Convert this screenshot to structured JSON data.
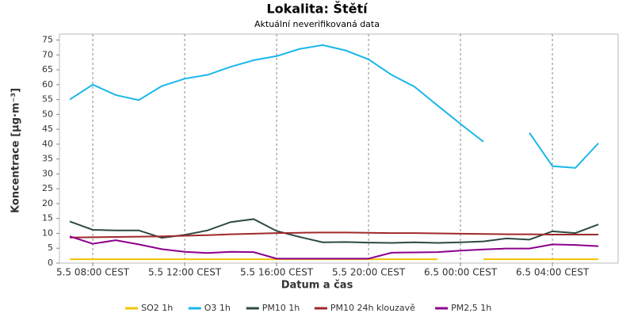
{
  "chart_data": {
    "type": "line",
    "title": "Lokalita: Štětí",
    "subtitle": "Aktuální neverifikovaná data",
    "x_label": "Datum a čas",
    "y_label": "Koncentrace [µg·m⁻³]",
    "x": [
      7,
      8,
      9,
      10,
      11,
      12,
      13,
      14,
      15,
      16,
      17,
      18,
      19,
      20,
      21,
      22,
      23,
      24,
      25,
      26,
      27,
      28,
      29,
      30
    ],
    "xlim": [
      6.55,
      30.86
    ],
    "xticks": [
      {
        "value": 8,
        "label": "5.5 08:00 CEST"
      },
      {
        "value": 12,
        "label": "5.5 12:00 CEST"
      },
      {
        "value": 16,
        "label": "5.5 16:00 CEST"
      },
      {
        "value": 20,
        "label": "5.5 20:00 CEST"
      },
      {
        "value": 24,
        "label": "6.5 00:00 CEST"
      },
      {
        "value": 28,
        "label": "6.5 04:00 CEST"
      }
    ],
    "ylim": [
      0,
      77
    ],
    "yticks": [
      0,
      5,
      10,
      15,
      20,
      25,
      30,
      35,
      40,
      45,
      50,
      55,
      60,
      65,
      70,
      75
    ],
    "grid": "x",
    "legend": "bottom",
    "series": [
      {
        "name": "SO2 1h",
        "color": "#f5c400",
        "values": [
          1.3,
          1.3,
          1.3,
          1.3,
          1.3,
          1.3,
          1.3,
          1.3,
          1.3,
          1.3,
          1.3,
          1.3,
          1.3,
          1.3,
          1.3,
          1.3,
          1.3,
          null,
          1.3,
          1.3,
          1.3,
          1.3,
          1.3,
          1.3
        ]
      },
      {
        "name": "O3 1h",
        "color": "#19b7ea",
        "values": [
          55,
          60,
          56.5,
          54.8,
          59.5,
          62,
          63.3,
          66,
          68.2,
          69.6,
          72,
          73.3,
          71.5,
          68.5,
          63.3,
          59.3,
          53,
          46.8,
          40.8,
          null,
          43.8,
          32.6,
          32,
          40.3
        ]
      },
      {
        "name": "PM10 1h",
        "color": "#2e4a44",
        "values": [
          14,
          11.2,
          11,
          11,
          8.5,
          9.5,
          11,
          13.8,
          14.8,
          10.8,
          8.8,
          7,
          7.1,
          6.9,
          6.8,
          7,
          6.8,
          7,
          7.3,
          8.3,
          7.9,
          10.7,
          10.1,
          13
        ]
      },
      {
        "name": "PM10 24h klouzavě",
        "color": "#a0282a",
        "values": [
          8.6,
          8.7,
          8.8,
          8.9,
          9.0,
          9.2,
          9.4,
          9.7,
          9.9,
          10.1,
          10.2,
          10.3,
          10.3,
          10.2,
          10.1,
          10.1,
          10.0,
          9.9,
          9.8,
          9.7,
          9.7,
          9.6,
          9.6,
          9.6
        ]
      },
      {
        "name": "PM2,5 1h",
        "color": "#8b008b",
        "values": [
          9,
          6.5,
          7.7,
          6.3,
          4.7,
          3.8,
          3.4,
          3.8,
          3.7,
          1.5,
          1.5,
          1.5,
          1.5,
          1.5,
          3.5,
          3.6,
          3.7,
          4.2,
          4.6,
          4.9,
          4.9,
          6.3,
          6.1,
          5.7
        ]
      }
    ]
  }
}
